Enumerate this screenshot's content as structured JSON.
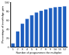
{
  "chart_data": {
    "type": "bar",
    "x_label": "Number of programmes the multiplier",
    "y_label": "Percentage of knowledge gain",
    "categories": [
      "1",
      "2",
      "3",
      "4",
      "5",
      "6",
      "7",
      "8",
      "9",
      "10",
      "11",
      "12"
    ],
    "values": [
      8,
      35,
      52,
      63,
      71,
      77,
      81,
      84,
      87,
      89,
      90,
      91
    ],
    "color": "#1f5fbf",
    "ylim": [
      0,
      100
    ],
    "yticks": [
      0,
      20,
      40,
      60,
      80,
      100
    ],
    "grid": false
  }
}
